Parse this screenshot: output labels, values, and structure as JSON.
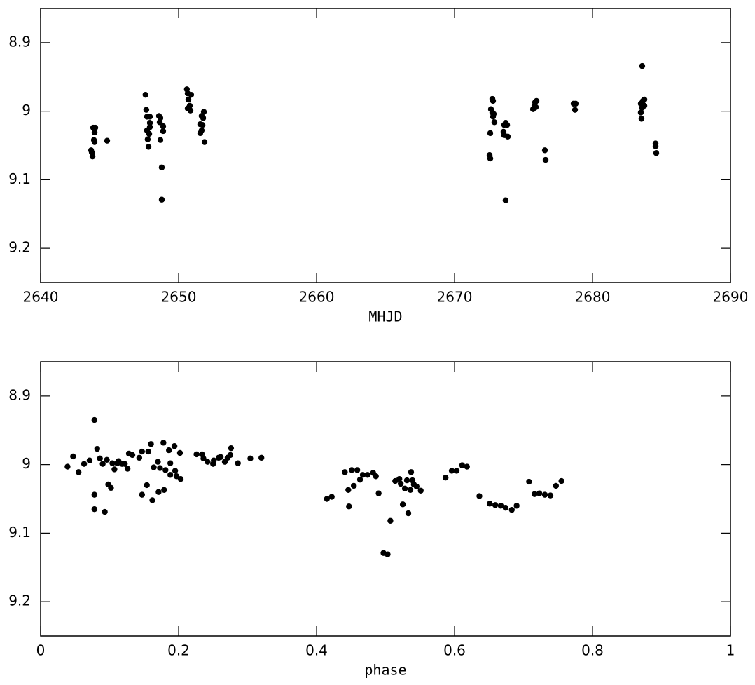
{
  "chart_data": [
    {
      "type": "scatter",
      "xlabel": "MHJD",
      "color": "#000000",
      "xlim": [
        2640,
        2690
      ],
      "xticks": [
        2640,
        2650,
        2660,
        2670,
        2680,
        2690
      ],
      "ylim": [
        9.25,
        8.85
      ],
      "yticks": [
        8.9,
        9,
        9.1,
        9.2
      ],
      "x": [
        2643.66,
        2643.71,
        2643.76,
        2643.81,
        2643.96,
        2643.91,
        2643.86,
        2643.91,
        2644.82,
        2647.6,
        2647.66,
        2647.71,
        2647.71,
        2647.76,
        2647.82,
        2647.92,
        2647.92,
        2647.92,
        2647.87,
        2648.58,
        2648.68,
        2648.63,
        2648.68,
        2648.78,
        2648.78,
        2648.88,
        2648.88,
        2650.6,
        2650.66,
        2650.71,
        2650.81,
        2650.91,
        2650.66,
        2650.86,
        2651.57,
        2651.67,
        2651.83,
        2651.73,
        2651.57,
        2651.67,
        2651.88,
        2651.78,
        2672.54,
        2672.59,
        2672.59,
        2672.64,
        2672.74,
        2672.79,
        2672.74,
        2672.84,
        2672.79,
        2672.89,
        2673.55,
        2673.6,
        2673.71,
        2673.81,
        2673.6,
        2673.86,
        2673.7,
        2675.69,
        2675.79,
        2675.84,
        2675.94,
        2675.89,
        2676.55,
        2676.6,
        2678.63,
        2678.78,
        2678.73,
        2683.6,
        2683.5,
        2683.6,
        2683.65,
        2683.76,
        2683.76,
        2683.5,
        2683.55,
        2684.57,
        2684.57,
        2684.62
      ],
      "values": [
        9.057,
        9.06,
        9.066,
        9.024,
        9.024,
        9.031,
        9.042,
        9.045,
        9.043,
        8.976,
        8.998,
        9.008,
        9.028,
        9.041,
        9.052,
        9.008,
        9.017,
        9.023,
        9.033,
        9.007,
        9.01,
        9.016,
        9.042,
        9.082,
        9.129,
        9.022,
        9.029,
        8.968,
        8.974,
        8.983,
        8.992,
        8.976,
        8.996,
        8.999,
        9.019,
        9.007,
        9.001,
        9.02,
        9.032,
        9.028,
        9.045,
        9.01,
        9.064,
        9.069,
        9.032,
        8.997,
        8.982,
        8.985,
        9.002,
        9.004,
        9.008,
        9.016,
        9.03,
        9.035,
        9.017,
        9.02,
        9.02,
        9.037,
        9.13,
        8.997,
        8.992,
        8.987,
        8.985,
        8.994,
        9.057,
        9.071,
        8.989,
        8.989,
        8.998,
        8.934,
        8.989,
        8.995,
        8.985,
        8.983,
        8.992,
        9.002,
        9.011,
        9.047,
        9.051,
        9.061
      ]
    },
    {
      "type": "scatter",
      "xlabel": "phase",
      "color": "#000000",
      "xlim": [
        0,
        1
      ],
      "xticks": [
        0,
        0.2,
        0.4,
        0.6,
        0.8,
        1
      ],
      "ylim": [
        9.25,
        8.85
      ],
      "yticks": [
        8.9,
        9,
        9.1,
        9.2
      ],
      "x": [
        0.039,
        0.047,
        0.055,
        0.063,
        0.071,
        0.078,
        0.078,
        0.078,
        0.082,
        0.086,
        0.09,
        0.093,
        0.096,
        0.098,
        0.102,
        0.104,
        0.107,
        0.111,
        0.113,
        0.118,
        0.122,
        0.126,
        0.128,
        0.133,
        0.143,
        0.147,
        0.147,
        0.154,
        0.156,
        0.16,
        0.162,
        0.164,
        0.17,
        0.171,
        0.173,
        0.178,
        0.179,
        0.181,
        0.186,
        0.188,
        0.188,
        0.194,
        0.195,
        0.197,
        0.202,
        0.203,
        0.226,
        0.234,
        0.236,
        0.242,
        0.25,
        0.251,
        0.258,
        0.261,
        0.267,
        0.271,
        0.275,
        0.276,
        0.286,
        0.304,
        0.32,
        0.415,
        0.422,
        0.441,
        0.446,
        0.447,
        0.451,
        0.454,
        0.459,
        0.463,
        0.467,
        0.474,
        0.482,
        0.486,
        0.49,
        0.497,
        0.503,
        0.507,
        0.514,
        0.52,
        0.522,
        0.525,
        0.528,
        0.531,
        0.533,
        0.536,
        0.537,
        0.539,
        0.541,
        0.545,
        0.551,
        0.587,
        0.596,
        0.603,
        0.611,
        0.618,
        0.636,
        0.651,
        0.659,
        0.667,
        0.674,
        0.683,
        0.69,
        0.708,
        0.716,
        0.723,
        0.731,
        0.739,
        0.747,
        0.755
      ],
      "values": [
        9.003,
        8.988,
        9.011,
        8.999,
        8.994,
        8.935,
        9.044,
        9.065,
        8.977,
        8.991,
        8.999,
        9.069,
        8.993,
        9.029,
        9.034,
        8.998,
        9.007,
        8.998,
        8.995,
        8.999,
        8.999,
        9.006,
        8.984,
        8.986,
        8.99,
        8.981,
        9.044,
        9.03,
        8.981,
        8.97,
        9.052,
        9.004,
        8.996,
        9.04,
        9.005,
        8.968,
        9.037,
        9.008,
        8.979,
        8.998,
        9.015,
        8.973,
        9.009,
        9.017,
        8.983,
        9.021,
        8.985,
        8.985,
        8.991,
        8.996,
        8.999,
        8.994,
        8.99,
        8.989,
        8.996,
        8.99,
        8.986,
        8.976,
        8.998,
        8.991,
        8.99,
        9.05,
        9.047,
        9.011,
        9.037,
        9.061,
        9.008,
        9.031,
        9.008,
        9.022,
        9.015,
        9.015,
        9.012,
        9.017,
        9.042,
        9.129,
        9.131,
        9.082,
        9.024,
        9.021,
        9.028,
        9.058,
        9.035,
        9.023,
        9.071,
        9.037,
        9.011,
        9.023,
        9.029,
        9.032,
        9.038,
        9.019,
        9.009,
        9.009,
        9.001,
        9.003,
        9.046,
        9.057,
        9.059,
        9.06,
        9.063,
        9.066,
        9.06,
        9.025,
        9.043,
        9.042,
        9.044,
        9.045,
        9.031,
        9.024
      ]
    }
  ]
}
